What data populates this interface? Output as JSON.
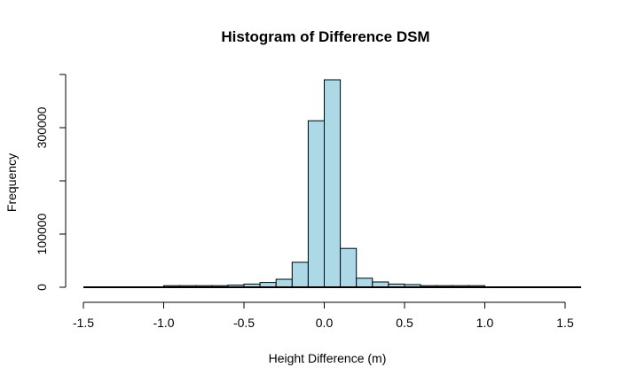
{
  "chart_data": {
    "type": "bar",
    "title": "Histogram of Difference DSM",
    "xlabel": "Height Difference (m)",
    "ylabel": "Frequency",
    "xlim": [
      -1.5,
      1.6
    ],
    "ylim": [
      0,
      390000
    ],
    "grid": false,
    "bar_color": "#add8e6",
    "bar_border_color": "#000000",
    "x_ticks": [
      {
        "value": -1.5,
        "label": "-1.5"
      },
      {
        "value": -1.0,
        "label": "-1.0"
      },
      {
        "value": -0.5,
        "label": "-0.5"
      },
      {
        "value": 0.0,
        "label": "0.0"
      },
      {
        "value": 0.5,
        "label": "0.5"
      },
      {
        "value": 1.0,
        "label": "1.0"
      },
      {
        "value": 1.5,
        "label": "1.5"
      }
    ],
    "y_ticks": [
      {
        "value": 0,
        "label": "0"
      },
      {
        "value": 100000,
        "label": "100000"
      },
      {
        "value": 200000,
        "label": ""
      },
      {
        "value": 300000,
        "label": "300000"
      },
      {
        "value": 400000,
        "label": ""
      }
    ],
    "bins": [
      {
        "x0": -1.5,
        "x1": -1.4,
        "value": 0
      },
      {
        "x0": -1.4,
        "x1": -1.3,
        "value": 0
      },
      {
        "x0": -1.3,
        "x1": -1.2,
        "value": 0
      },
      {
        "x0": -1.2,
        "x1": -1.1,
        "value": 0
      },
      {
        "x0": -1.1,
        "x1": -1.0,
        "value": 0
      },
      {
        "x0": -1.0,
        "x1": -0.9,
        "value": 3000
      },
      {
        "x0": -0.9,
        "x1": -0.8,
        "value": 3000
      },
      {
        "x0": -0.8,
        "x1": -0.7,
        "value": 3000
      },
      {
        "x0": -0.7,
        "x1": -0.6,
        "value": 3000
      },
      {
        "x0": -0.6,
        "x1": -0.5,
        "value": 4000
      },
      {
        "x0": -0.5,
        "x1": -0.4,
        "value": 6000
      },
      {
        "x0": -0.4,
        "x1": -0.3,
        "value": 9000
      },
      {
        "x0": -0.3,
        "x1": -0.2,
        "value": 15000
      },
      {
        "x0": -0.2,
        "x1": -0.1,
        "value": 47000
      },
      {
        "x0": -0.1,
        "x1": 0.0,
        "value": 313000
      },
      {
        "x0": 0.0,
        "x1": 0.1,
        "value": 390000
      },
      {
        "x0": 0.1,
        "x1": 0.2,
        "value": 73000
      },
      {
        "x0": 0.2,
        "x1": 0.3,
        "value": 17000
      },
      {
        "x0": 0.3,
        "x1": 0.4,
        "value": 10000
      },
      {
        "x0": 0.4,
        "x1": 0.5,
        "value": 6000
      },
      {
        "x0": 0.5,
        "x1": 0.6,
        "value": 5000
      },
      {
        "x0": 0.6,
        "x1": 0.7,
        "value": 3000
      },
      {
        "x0": 0.7,
        "x1": 0.8,
        "value": 3000
      },
      {
        "x0": 0.8,
        "x1": 0.9,
        "value": 3000
      },
      {
        "x0": 0.9,
        "x1": 1.0,
        "value": 3000
      },
      {
        "x0": 1.0,
        "x1": 1.1,
        "value": 0
      },
      {
        "x0": 1.1,
        "x1": 1.2,
        "value": 0
      },
      {
        "x0": 1.2,
        "x1": 1.3,
        "value": 0
      },
      {
        "x0": 1.3,
        "x1": 1.4,
        "value": 0
      },
      {
        "x0": 1.4,
        "x1": 1.5,
        "value": 0
      },
      {
        "x0": 1.5,
        "x1": 1.6,
        "value": 0
      }
    ]
  }
}
